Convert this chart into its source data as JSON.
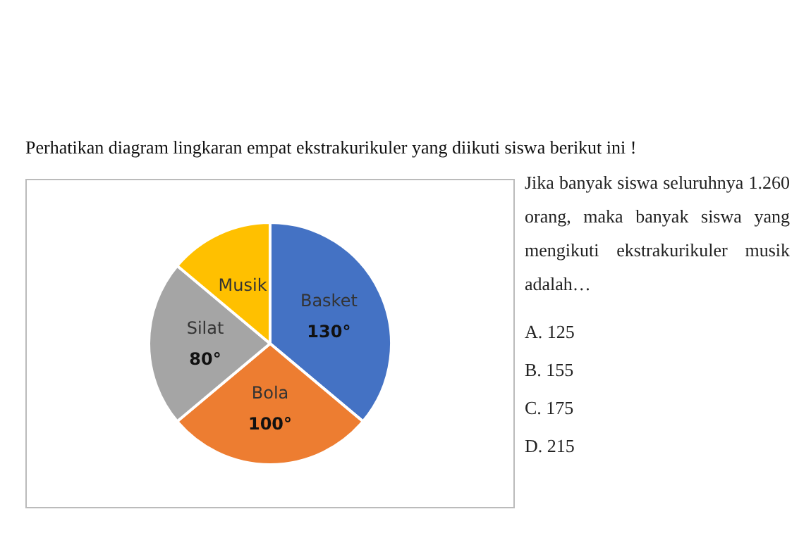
{
  "chart_data": {
    "type": "pie",
    "title": "Perhatikan diagram lingkaran empat ekstrakurikuler yang diikuti siswa berikut ini !",
    "categories": [
      "Basket",
      "Bola",
      "Silat",
      "Musik"
    ],
    "values": [
      130,
      100,
      80,
      50
    ],
    "colors": [
      "#4472c4",
      "#ed7d31",
      "#a5a5a5",
      "#ffc000"
    ],
    "value_labels": [
      "130°",
      "100°",
      "80°",
      null
    ],
    "annotations": [
      "Jika banyak siswa seluruhnya 1.260 orang, maka banyak siswa yang mengikuti ekstrakurikuler musik adalah…",
      "A.  125",
      "B.  155",
      "C.  175",
      "D.  215"
    ]
  }
}
